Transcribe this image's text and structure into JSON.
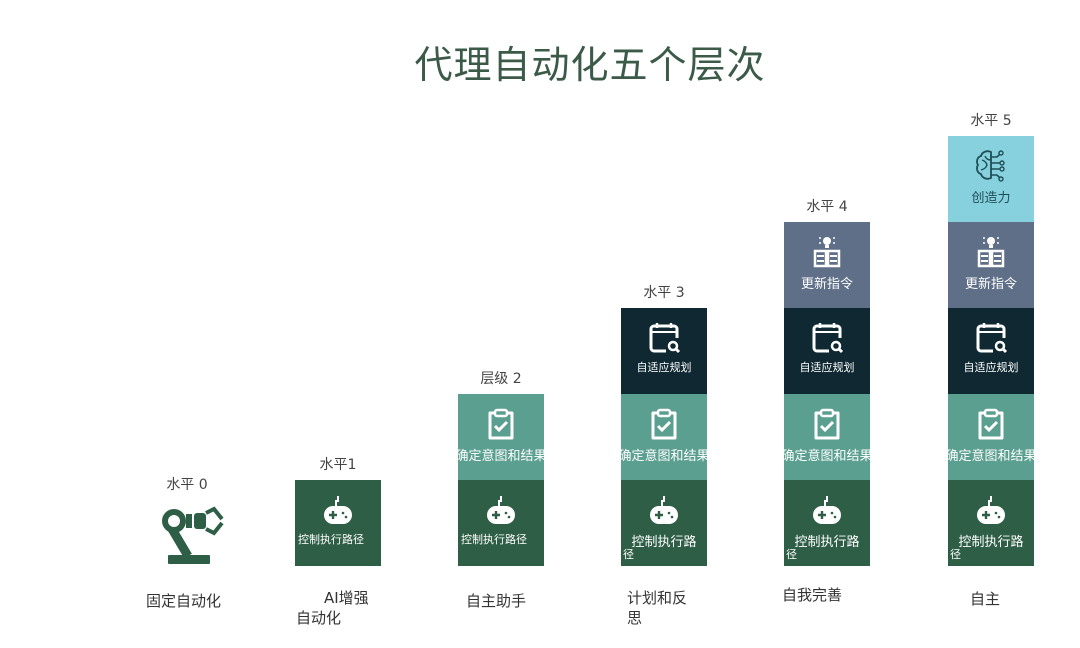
{
  "title": "代理自动化五个层次",
  "colors": {
    "control": "#2e5e46",
    "intent": "#5b9f90",
    "planning": "#0f2832",
    "update": "#5e6f87",
    "creativity": "#86d1dd",
    "robot": "#2e5e46"
  },
  "levels": [
    {
      "label": "水平 0",
      "name_lines": [
        "固定自动化"
      ],
      "icon": "robot-arm-icon",
      "blocks": []
    },
    {
      "label": "水平1",
      "name_lines": [
        "AI增强",
        "自动化"
      ],
      "blocks": [
        {
          "type": "control",
          "icon": "gamepad-icon",
          "text": "控制执行路径"
        }
      ]
    },
    {
      "label": "层级 2",
      "name_lines": [
        "自主助手"
      ],
      "blocks": [
        {
          "type": "intent",
          "icon": "clipboard-check-icon",
          "text": "确定意图和结果"
        },
        {
          "type": "control",
          "icon": "gamepad-icon",
          "text": "控制执行路径"
        }
      ]
    },
    {
      "label": "水平 3",
      "name_lines": [
        "计划和反",
        "思"
      ],
      "blocks": [
        {
          "type": "planning",
          "icon": "calendar-search-icon",
          "text": "自适应规划"
        },
        {
          "type": "intent",
          "icon": "clipboard-check-icon",
          "text": "确定意图和结果"
        },
        {
          "type": "control",
          "icon": "gamepad-icon",
          "text": "控制执行路",
          "tail": "径"
        }
      ]
    },
    {
      "label": "水平 4",
      "name_lines": [
        "自我完善"
      ],
      "blocks": [
        {
          "type": "update",
          "icon": "lightbulb-book-icon",
          "text": "更新指令"
        },
        {
          "type": "planning",
          "icon": "calendar-search-icon",
          "text": "自适应规划"
        },
        {
          "type": "intent",
          "icon": "clipboard-check-icon",
          "text": "确定意图和结果"
        },
        {
          "type": "control",
          "icon": "gamepad-icon",
          "text": "控制执行路",
          "tail": "径"
        }
      ]
    },
    {
      "label": "水平 5",
      "name_lines": [
        "自主"
      ],
      "blocks": [
        {
          "type": "creativity",
          "icon": "brain-circuit-icon",
          "text": "创造力"
        },
        {
          "type": "update",
          "icon": "lightbulb-book-icon",
          "text": "更新指令"
        },
        {
          "type": "planning",
          "icon": "calendar-search-icon",
          "text": "自适应规划"
        },
        {
          "type": "intent",
          "icon": "clipboard-check-icon",
          "text": "确定意图和结果"
        },
        {
          "type": "control",
          "icon": "gamepad-icon",
          "text": "控制执行路",
          "tail": "径"
        }
      ]
    }
  ]
}
